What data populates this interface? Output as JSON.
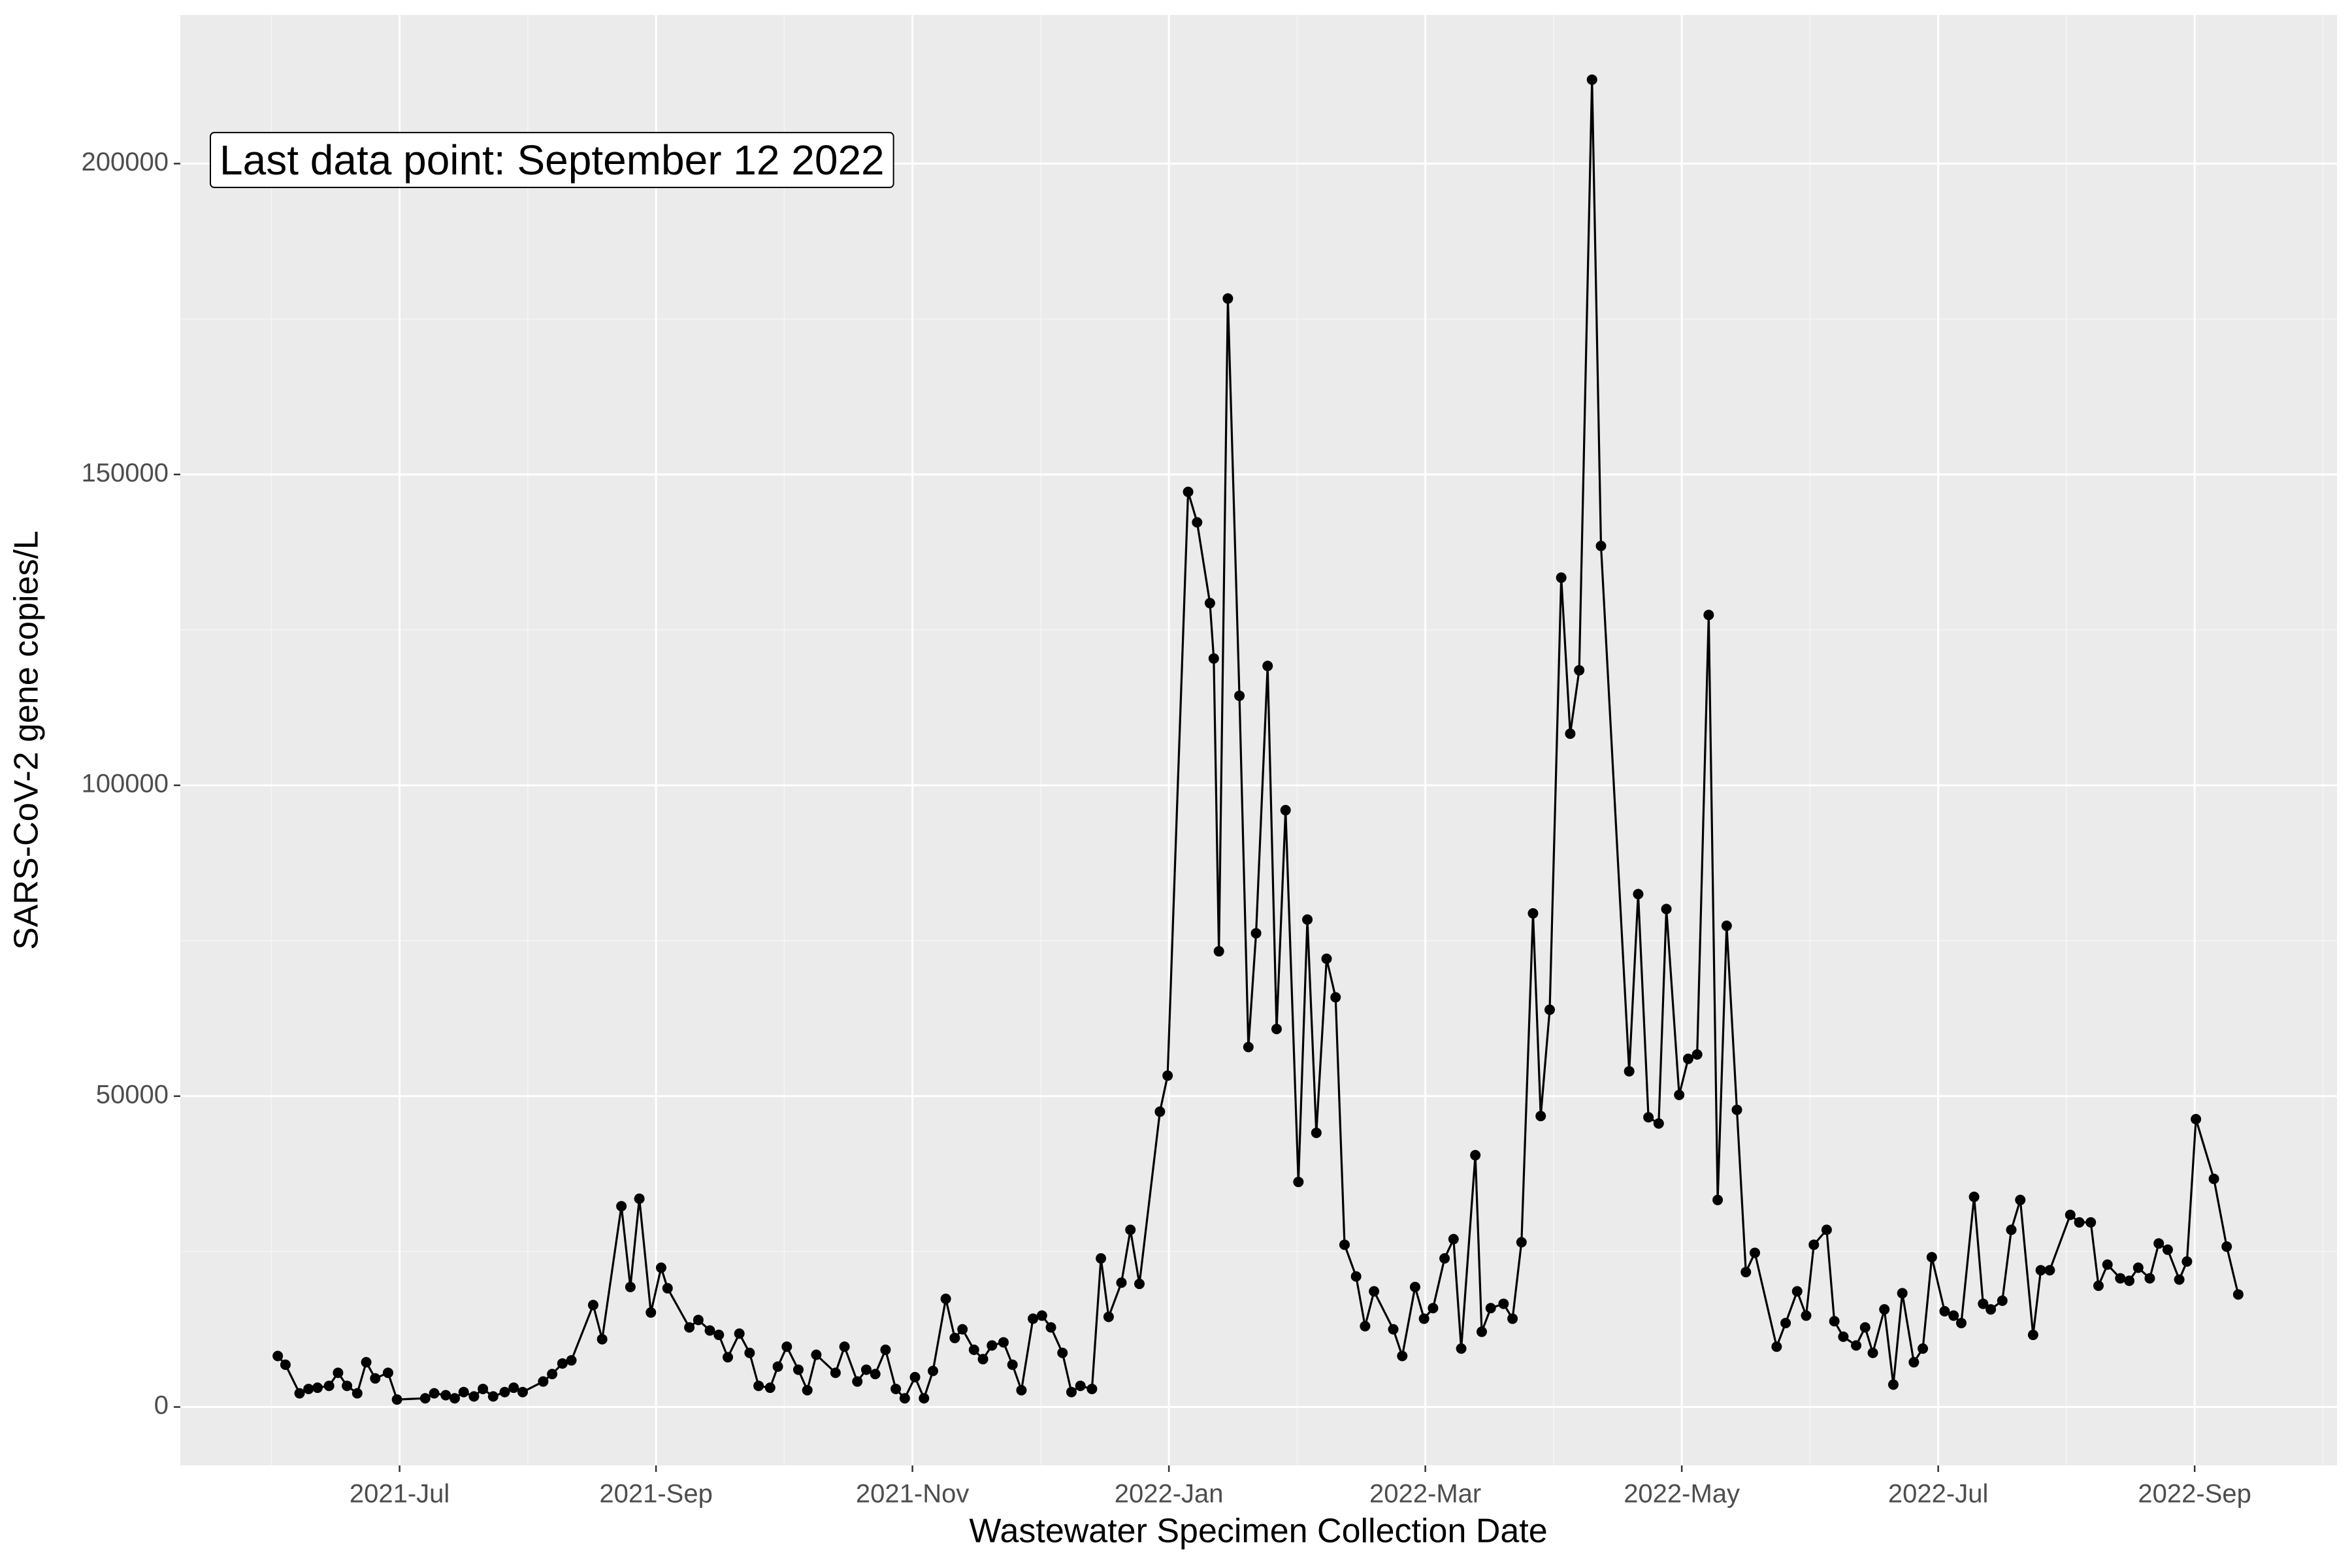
{
  "chart_data": {
    "type": "line",
    "annotation": "Last data point: September 12 2022",
    "x_label": "Wastewater Specimen Collection Date",
    "y_label": "SARS-CoV-2 gene copies/L",
    "color": "#000000",
    "grid": true,
    "xlim": [
      5.29,
      22.11
    ],
    "ylim": [
      -9400,
      223900
    ],
    "xticks": [
      {
        "value": 7,
        "label": "2021-Jul"
      },
      {
        "value": 9,
        "label": "2021-Sep"
      },
      {
        "value": 11,
        "label": "2021-Nov"
      },
      {
        "value": 13,
        "label": "2022-Jan"
      },
      {
        "value": 15,
        "label": "2022-Mar"
      },
      {
        "value": 17,
        "label": "2022-May"
      },
      {
        "value": 19,
        "label": "2022-Jul"
      },
      {
        "value": 21,
        "label": "2022-Sep"
      }
    ],
    "yticks": [
      0,
      50000,
      100000,
      150000,
      200000
    ],
    "x": [
      6.05,
      6.11,
      6.22,
      6.29,
      6.36,
      6.45,
      6.52,
      6.59,
      6.67,
      6.74,
      6.81,
      6.91,
      6.98,
      7.2,
      7.27,
      7.36,
      7.43,
      7.5,
      7.58,
      7.65,
      7.73,
      7.82,
      7.89,
      7.96,
      8.12,
      8.19,
      8.27,
      8.34,
      8.51,
      8.58,
      8.73,
      8.8,
      8.87,
      8.96,
      9.04,
      9.09,
      9.26,
      9.33,
      9.42,
      9.49,
      9.56,
      9.65,
      9.73,
      9.8,
      9.89,
      9.95,
      10.02,
      10.11,
      10.18,
      10.25,
      10.4,
      10.47,
      10.57,
      10.64,
      10.71,
      10.79,
      10.87,
      10.94,
      11.02,
      11.09,
      11.16,
      11.26,
      11.33,
      11.39,
      11.48,
      11.55,
      11.62,
      11.71,
      11.78,
      11.85,
      11.94,
      12.01,
      12.08,
      12.17,
      12.24,
      12.31,
      12.4,
      12.47,
      12.53,
      12.63,
      12.7,
      12.77,
      12.93,
      12.99,
      13.15,
      13.22,
      13.32,
      13.35,
      13.39,
      13.46,
      13.55,
      13.62,
      13.68,
      13.77,
      13.84,
      13.91,
      14.01,
      14.08,
      14.15,
      14.23,
      14.3,
      14.37,
      14.46,
      14.53,
      14.6,
      14.75,
      14.82,
      14.92,
      14.99,
      15.06,
      15.15,
      15.22,
      15.28,
      15.39,
      15.44,
      15.51,
      15.61,
      15.68,
      15.75,
      15.84,
      15.9,
      15.97,
      16.06,
      16.13,
      16.2,
      16.3,
      16.37,
      16.59,
      16.66,
      16.74,
      16.82,
      16.88,
      16.98,
      17.05,
      17.12,
      17.21,
      17.28,
      17.35,
      17.43,
      17.5,
      17.57,
      17.74,
      17.81,
      17.9,
      17.97,
      18.03,
      18.13,
      18.19,
      18.26,
      18.36,
      18.43,
      18.49,
      18.58,
      18.65,
      18.72,
      18.81,
      18.88,
      18.95,
      19.05,
      19.12,
      19.18,
      19.28,
      19.35,
      19.41,
      19.5,
      19.57,
      19.64,
      19.74,
      19.8,
      19.87,
      20.03,
      20.1,
      20.19,
      20.25,
      20.32,
      20.42,
      20.49,
      20.56,
      20.65,
      20.72,
      20.79,
      20.88,
      20.94,
      21.01,
      21.15,
      21.25,
      21.34
    ],
    "values": [
      8200,
      6800,
      2200,
      2900,
      3100,
      3400,
      5500,
      3400,
      2200,
      7200,
      4600,
      5500,
      1200,
      1400,
      2200,
      1900,
      1400,
      2400,
      1700,
      2900,
      1700,
      2400,
      3100,
      2400,
      4100,
      5300,
      7000,
      7500,
      16400,
      10900,
      32300,
      19300,
      33500,
      15200,
      22400,
      19100,
      12800,
      14000,
      12300,
      11600,
      8000,
      11800,
      8700,
      3400,
      3100,
      6500,
      9700,
      6000,
      2700,
      8400,
      5500,
      9700,
      4100,
      6000,
      5300,
      9200,
      2900,
      1400,
      4800,
      1400,
      5800,
      17400,
      11100,
      12500,
      9200,
      7700,
      9900,
      10400,
      6800,
      2700,
      14200,
      14700,
      12800,
      8700,
      2400,
      3400,
      2900,
      23900,
      14500,
      20000,
      28500,
      19800,
      47500,
      53300,
      147200,
      142300,
      129300,
      120400,
      73300,
      178300,
      114400,
      57900,
      76200,
      119200,
      60800,
      96000,
      36200,
      78400,
      44100,
      72100,
      65900,
      26100,
      21000,
      13000,
      18600,
      12500,
      8200,
      19300,
      14200,
      15900,
      23900,
      27000,
      9400,
      40500,
      12100,
      15900,
      16600,
      14200,
      26500,
      79400,
      46800,
      63900,
      133400,
      108300,
      118500,
      213500,
      138500,
      54000,
      82500,
      46600,
      45600,
      80100,
      50200,
      56000,
      56700,
      127400,
      33300,
      77400,
      47800,
      21700,
      24800,
      9700,
      13500,
      18600,
      14700,
      26100,
      28500,
      13800,
      11300,
      9900,
      12800,
      8700,
      15700,
      3600,
      18300,
      7200,
      9400,
      24100,
      15400,
      14700,
      13500,
      33800,
      16600,
      15700,
      17100,
      28500,
      33300,
      11600,
      22000,
      22000,
      30900,
      29700,
      29700,
      19500,
      22900,
      20700,
      20300,
      22400,
      20700,
      26300,
      25300,
      20500,
      23400,
      46300,
      36700,
      25800,
      18100
    ]
  }
}
